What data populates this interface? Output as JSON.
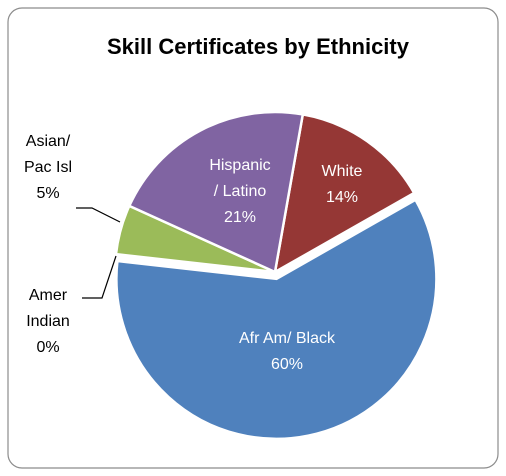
{
  "chart_data": {
    "type": "pie",
    "title": "Skill Certificates by Ethnicity",
    "categories": [
      "White",
      "Afr Am/ Black",
      "Amer Indian",
      "Asian/ Pac Isl",
      "Hispanic/ Latino"
    ],
    "values": [
      14,
      60,
      0,
      5,
      21
    ],
    "value_labels": [
      "14%",
      "60%",
      "0%",
      "5%",
      "21%"
    ],
    "colors": [
      "#953735",
      "#4f81bd",
      "#4bacc6",
      "#9bbb59",
      "#8064a2"
    ]
  }
}
